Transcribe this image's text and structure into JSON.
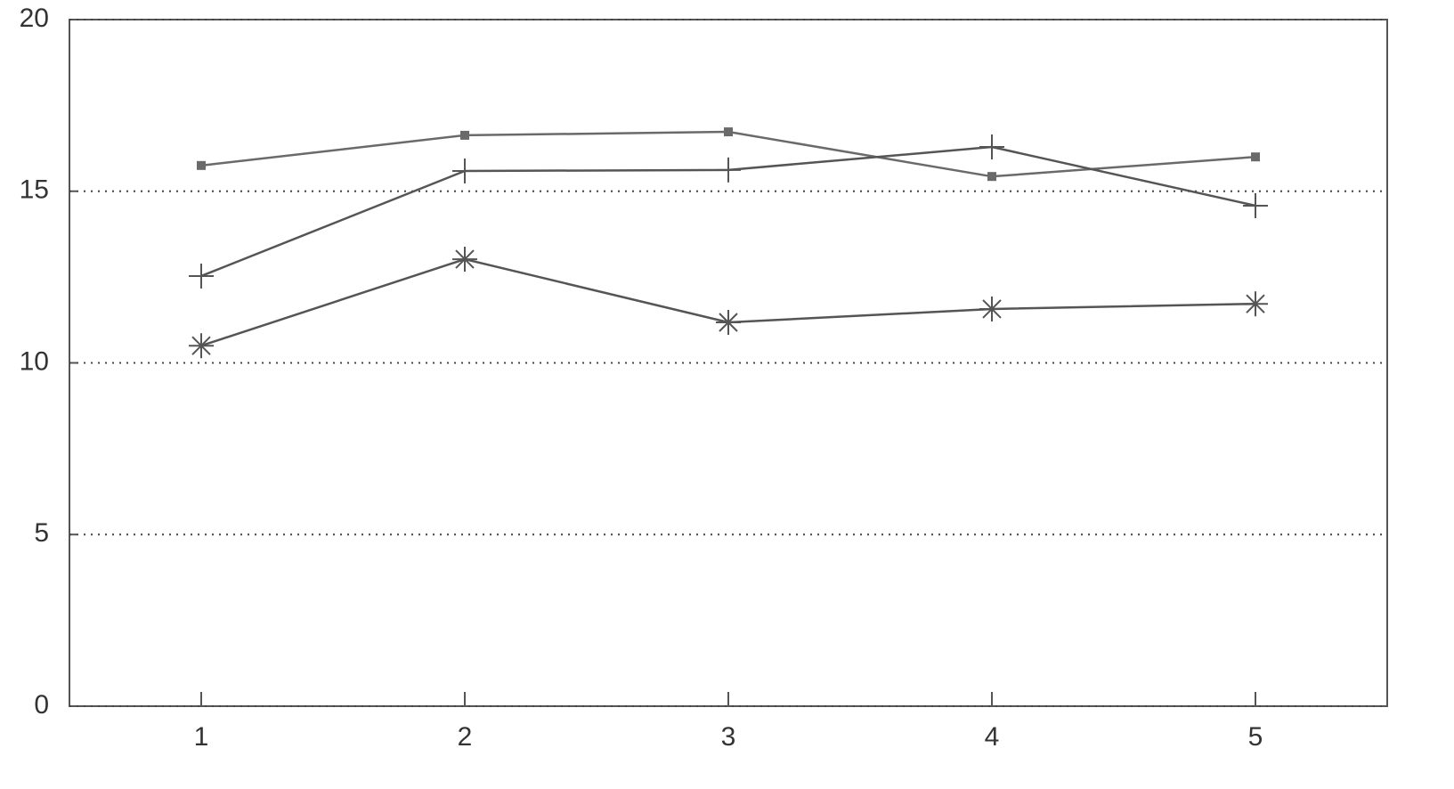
{
  "chart_data": {
    "type": "line",
    "x": [
      1,
      2,
      3,
      4,
      5
    ],
    "xlim": [
      0.5,
      5.5
    ],
    "xticks": [
      1,
      2,
      3,
      4,
      5
    ],
    "ylim": [
      0,
      20
    ],
    "yticks": [
      0,
      5,
      10,
      15,
      20
    ],
    "grid": true,
    "series": [
      {
        "color": "#6a6a6a",
        "marker": "square",
        "values": [
          15.75,
          16.63,
          16.73,
          15.43,
          16.0
        ]
      },
      {
        "color": "#555555",
        "marker": "plus",
        "values": [
          12.53,
          15.59,
          15.62,
          16.29,
          14.58
        ]
      },
      {
        "color": "#555555",
        "marker": "star",
        "values": [
          10.5,
          13.02,
          11.18,
          11.57,
          11.72
        ]
      }
    ]
  }
}
